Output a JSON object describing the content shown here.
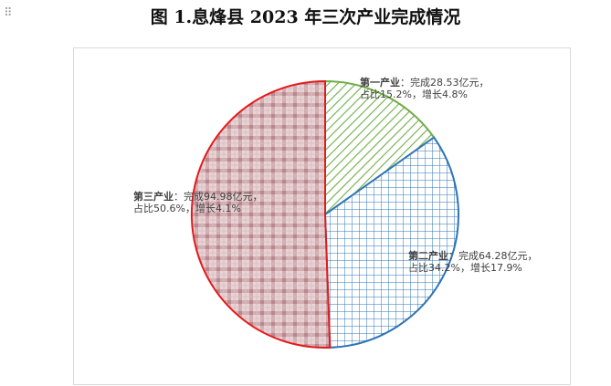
{
  "page": {
    "title": "图 1.息烽县 2023 年三次产业完成情况",
    "drag_handle_glyph": "⠿"
  },
  "chart_data": {
    "type": "pie",
    "title": "",
    "start_angle_deg": 0,
    "direction": "clockwise",
    "slices": [
      {
        "name": "第一产业",
        "value": 28.53,
        "share_pct": 15.2,
        "growth_pct": 4.8,
        "line1_rest": "：完成28.53亿元，",
        "line2": "占比15.2%，增长4.8%",
        "fill_pattern": "diagonal-stripes",
        "color": "#70AD47",
        "stroke": "#70AD47"
      },
      {
        "name": "第二产业",
        "value": 64.28,
        "share_pct": 34.2,
        "growth_pct": 17.9,
        "line1_rest": "：完成64.28亿元，",
        "line2": "占比34.2%，增长17.9%",
        "fill_pattern": "grid",
        "color": "#2E75B6",
        "stroke": "#2E75B6"
      },
      {
        "name": "第三产业",
        "value": 94.98,
        "share_pct": 50.6,
        "growth_pct": 4.1,
        "line1_rest": "：完成94.98亿元，",
        "line2": "占比50.6%，增长4.1%",
        "fill_pattern": "plaid",
        "color": "#C9A0A4",
        "stroke": "#E31A1C"
      }
    ],
    "legend": "none",
    "data_labels": "on-slice"
  }
}
